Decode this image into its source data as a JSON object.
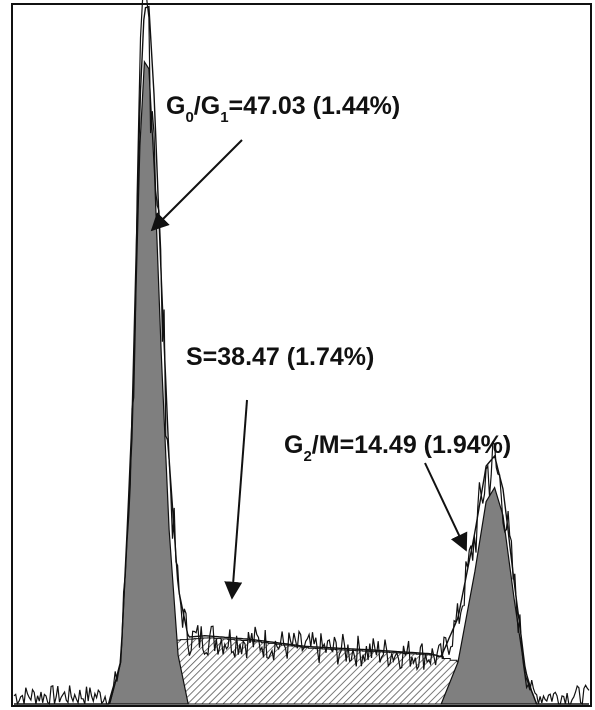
{
  "chart_data": {
    "type": "area",
    "title": "",
    "xlabel": "",
    "ylabel": "",
    "grid": false,
    "legend": "none",
    "colors": {
      "frame": "#111111",
      "histogram": "#111111",
      "g0g1_fill": "#7f7f7f",
      "g2m_fill": "#7f7f7f",
      "s_hatch": "#555555",
      "model_outline": "#111111"
    },
    "xlim": [
      0,
      1023
    ],
    "ylim": [
      0,
      1000
    ],
    "series": [
      {
        "component": "g0g1",
        "x": [
          170,
          190,
          210,
          224,
          232,
          240,
          250,
          262,
          276,
          292,
          310
        ],
        "values": [
          0,
          60,
          380,
          800,
          920,
          910,
          760,
          500,
          250,
          70,
          0
        ]
      },
      {
        "component": "s_phase",
        "x": [
          200,
          260,
          340,
          420,
          520,
          640,
          740,
          790,
          830,
          880,
          920
        ],
        "values": [
          0,
          90,
          95,
          90,
          80,
          75,
          70,
          60,
          45,
          25,
          0
        ]
      },
      {
        "component": "g2m",
        "x": [
          760,
          790,
          820,
          840,
          855,
          870,
          890,
          910,
          930
        ],
        "values": [
          0,
          60,
          190,
          290,
          310,
          270,
          150,
          40,
          0
        ]
      }
    ],
    "annotations": [
      {
        "id": "g0g1",
        "parts": [
          "G",
          "0",
          "/G",
          "1",
          "=47.03 (1.44%)"
        ]
      },
      {
        "id": "s",
        "parts": [
          "S=38.47 (1.74%)"
        ]
      },
      {
        "id": "g2m",
        "parts": [
          "G",
          "2",
          "/M=14.49 (1.94%)"
        ]
      }
    ]
  }
}
